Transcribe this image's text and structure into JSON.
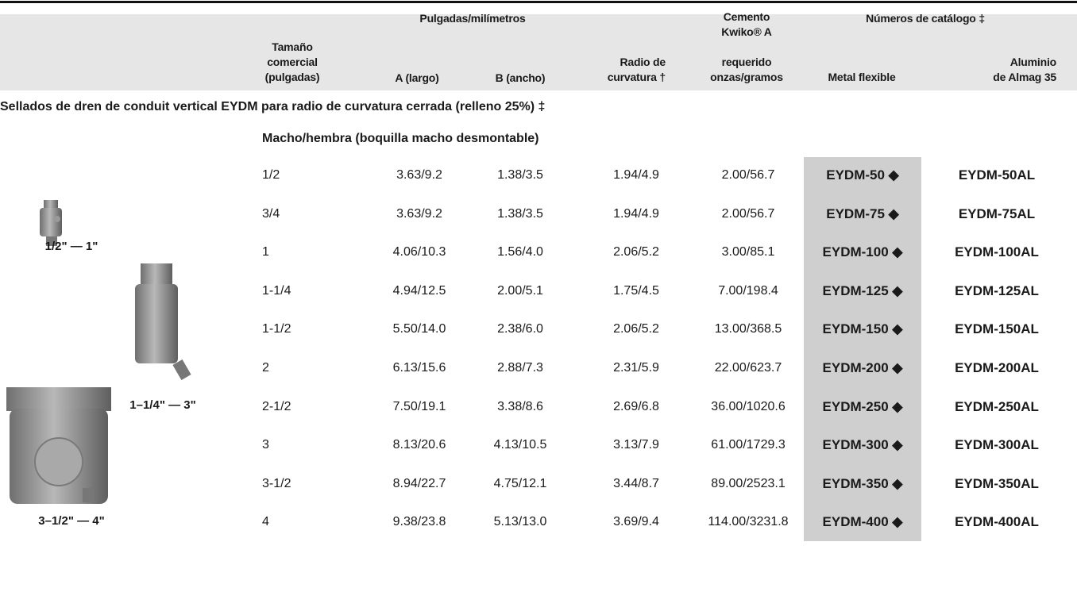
{
  "header": {
    "size": [
      "Tamaño",
      "comercial",
      "(pulgadas)"
    ],
    "dimensions_group": "Pulgadas/milímetros",
    "a": "A (largo)",
    "b": "B (ancho)",
    "radius": [
      "Radio de",
      "curvatura †"
    ],
    "cement": [
      "Cemento",
      "Kwiko® A",
      "requerido",
      "onzas/gramos"
    ],
    "catalog_group": "Números de catálogo ‡",
    "metal": "Metal flexible",
    "aluminum": [
      "Aluminio",
      "de Almag 35"
    ]
  },
  "section_title": "Sellados de dren de conduit vertical EYDM para radio de curvatura cerrada (relleno 25%) ‡",
  "subsection_title": "Macho/hembra (boquilla macho desmontable)",
  "image_labels": [
    "1/2\" — 1\"",
    "1–1/4\" — 3\"",
    "3–1/2\" — 4\""
  ],
  "table": {
    "rows": [
      [
        "1/2",
        "3.63/9.2",
        "1.38/3.5",
        "1.94/4.9",
        "2.00/56.7",
        "EYDM-50 ◆",
        "EYDM-50AL"
      ],
      [
        "3/4",
        "3.63/9.2",
        "1.38/3.5",
        "1.94/4.9",
        "2.00/56.7",
        "EYDM-75 ◆",
        "EYDM-75AL"
      ],
      [
        "1",
        "4.06/10.3",
        "1.56/4.0",
        "2.06/5.2",
        "3.00/85.1",
        "EYDM-100 ◆",
        "EYDM-100AL"
      ],
      [
        "1-1/4",
        "4.94/12.5",
        "2.00/5.1",
        "1.75/4.5",
        "7.00/198.4",
        "EYDM-125 ◆",
        "EYDM-125AL"
      ],
      [
        "1-1/2",
        "5.50/14.0",
        "2.38/6.0",
        "2.06/5.2",
        "13.00/368.5",
        "EYDM-150 ◆",
        "EYDM-150AL"
      ],
      [
        "2",
        "6.13/15.6",
        "2.88/7.3",
        "2.31/5.9",
        "22.00/623.7",
        "EYDM-200 ◆",
        "EYDM-200AL"
      ],
      [
        "2-1/2",
        "7.50/19.1",
        "3.38/8.6",
        "2.69/6.8",
        "36.00/1020.6",
        "EYDM-250 ◆",
        "EYDM-250AL"
      ],
      [
        "3",
        "8.13/20.6",
        "4.13/10.5",
        "3.13/7.9",
        "61.00/1729.3",
        "EYDM-300 ◆",
        "EYDM-300AL"
      ],
      [
        "3-1/2",
        "8.94/22.7",
        "4.75/12.1",
        "3.44/8.7",
        "89.00/2523.1",
        "EYDM-350 ◆",
        "EYDM-350AL"
      ],
      [
        "4",
        "9.38/23.8",
        "5.13/13.0",
        "3.69/9.4",
        "114.00/3231.8",
        "EYDM-400 ◆",
        "EYDM-400AL"
      ]
    ]
  }
}
